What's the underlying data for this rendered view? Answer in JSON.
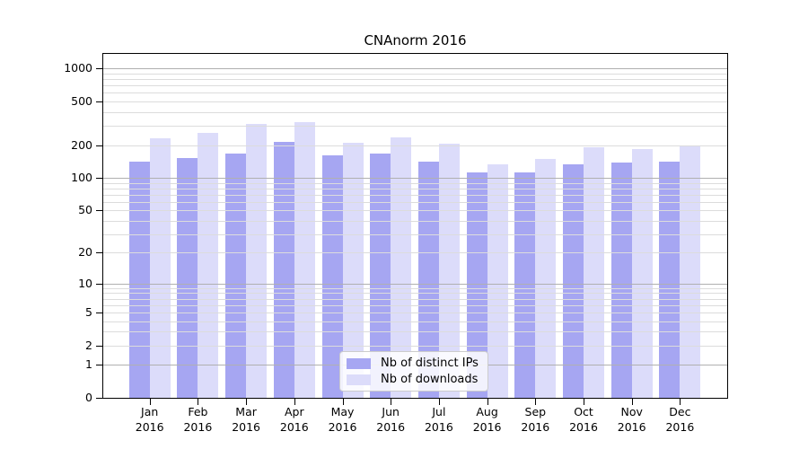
{
  "chart_data": {
    "type": "bar",
    "title": "CNAnorm 2016",
    "categories": [
      "Jan",
      "Feb",
      "Mar",
      "Apr",
      "May",
      "Jun",
      "Jul",
      "Aug",
      "Sep",
      "Oct",
      "Nov",
      "Dec"
    ],
    "year_label": "2016",
    "series": [
      {
        "name": "Nb of distinct IPs",
        "color": "#a6a6f2",
        "values": [
          142,
          151,
          166,
          214,
          161,
          166,
          142,
          113,
          113,
          134,
          138,
          141
        ]
      },
      {
        "name": "Nb of downloads",
        "color": "#dcdcfa",
        "values": [
          232,
          257,
          310,
          322,
          211,
          236,
          205,
          134,
          148,
          192,
          183,
          196
        ]
      }
    ],
    "yscale": "log10(value+1)",
    "ylim": [
      0,
      1360
    ],
    "ytick_values": [
      0,
      1,
      2,
      5,
      10,
      20,
      50,
      100,
      200,
      500,
      1000
    ],
    "ytick_labels": [
      "0",
      "1",
      "2",
      "5",
      "10",
      "20",
      "50",
      "100",
      "200",
      "500",
      "1000"
    ],
    "grid": {
      "on": true,
      "major_lines": [
        1,
        10,
        100,
        1000
      ],
      "minor_lines": [
        2,
        3,
        4,
        5,
        6,
        7,
        8,
        9,
        20,
        30,
        40,
        50,
        60,
        70,
        80,
        90,
        200,
        300,
        400,
        500,
        600,
        700,
        800,
        900
      ],
      "major_color": "#b0b0b0",
      "minor_color": "#dcdcdc"
    },
    "legend_position": "bottom-center",
    "xlabel": "",
    "ylabel": ""
  }
}
